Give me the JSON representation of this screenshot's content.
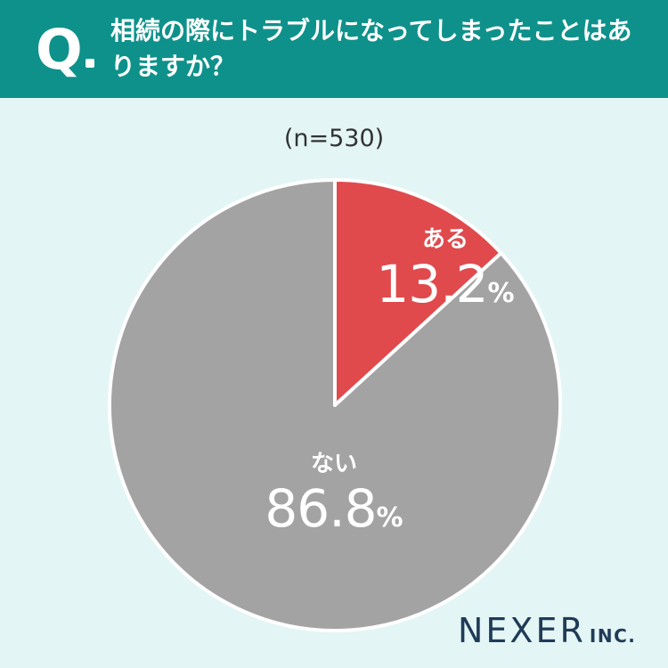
{
  "header": {
    "q_letter": "Q",
    "question": "相続の際にトラブルになってしまったことはありますか？"
  },
  "sample_size": "(n=530)",
  "chart_data": {
    "type": "pie",
    "labels": [
      "ある",
      "ない"
    ],
    "values": [
      13.2,
      86.8
    ],
    "value_labels": [
      "13.2",
      "86.8"
    ],
    "unit": "%",
    "colors": [
      "#e04a4d",
      "#a3a3a3"
    ]
  },
  "logo": {
    "main": "NEXER",
    "sub": "INC."
  }
}
